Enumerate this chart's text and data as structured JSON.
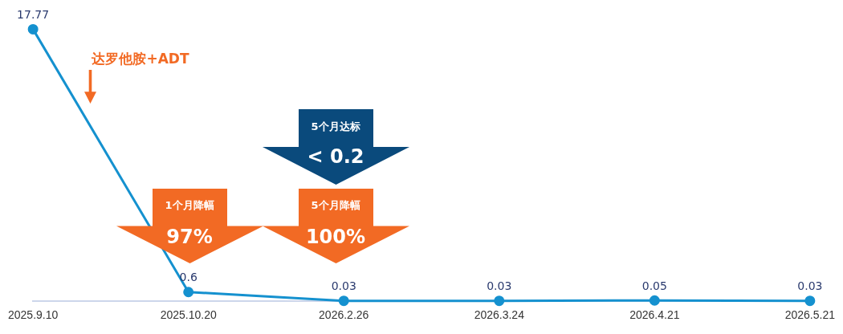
{
  "chart_data": {
    "type": "line",
    "categories": [
      "2025.9.10",
      "2025.10.20",
      "2026.2.26",
      "2026.3.24",
      "2026.4.21",
      "2026.5.21"
    ],
    "series": [
      {
        "color": "#1591cf",
        "values": [
          17.77,
          0.6,
          0.03,
          0.03,
          0.05,
          0.03
        ]
      }
    ],
    "data_labels": true,
    "marker": "circle",
    "grid": false,
    "legend": false,
    "tick_labels": "x",
    "annotations": [
      "达罗他胺+ADT",
      "1个月降幅",
      "97%",
      "5个月降幅",
      "100%",
      "5个月达标",
      "< 0.2"
    ]
  }
}
